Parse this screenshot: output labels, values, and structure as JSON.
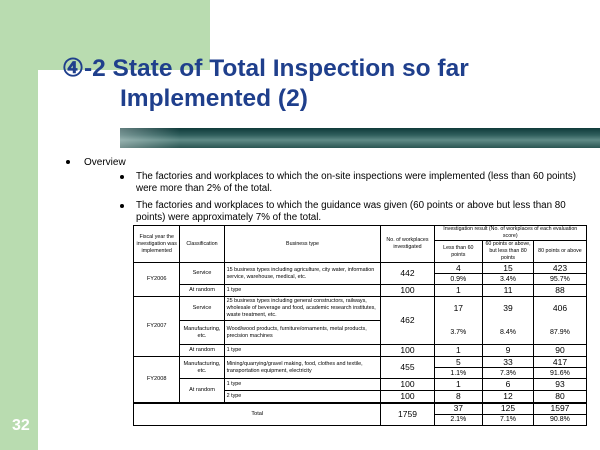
{
  "slide": {
    "title_line1": "④-2 State of Total Inspection so far",
    "title_line2": "Implemented (2)",
    "overview_label": "Overview",
    "bullets": [
      "The factories and workplaces to which the on-site inspections were implemented (less than 60 points) were more than 2% of the total.",
      "The factories and workplaces to which the guidance was given (60 points or above but less than 80 points) were approximately 7% of the total."
    ],
    "page_number": "32"
  },
  "table": {
    "headers": {
      "fiscal_year": "Fiscal year the investigation was implemented",
      "classification": "Classification",
      "business_type": "Business type",
      "no_investigated": "No. of workplaces investigated",
      "result_group": "Investigation result (No. of workplaces of each evaluation score)",
      "less60": "Less than 60 points",
      "60to80": "60 points or above, but less than 80 points",
      "80plus": "80 points or above"
    },
    "fy2006": {
      "year": "FY2006",
      "service": {
        "class": "Service",
        "type": "15 business types including agriculture, city water, information service, warehouse, medical, etc.",
        "investigated": "442",
        "less60": "4",
        "mid": "15",
        "high": "423",
        "less60_pct": "0.9%",
        "mid_pct": "3.4%",
        "high_pct": "95.7%"
      },
      "random": {
        "class": "At random",
        "type": "1 type",
        "investigated": "100",
        "less60": "1",
        "mid": "11",
        "high": "88"
      }
    },
    "fy2007": {
      "year": "FY2007",
      "service": {
        "class": "Service",
        "type": "25 business types including general constructors, railways, wholesale of beverage and food, academic research institutes, waste treatment, etc.",
        "investigated": "462",
        "less60": "17",
        "mid": "39",
        "high": "406",
        "less60_pct": "3.7%",
        "mid_pct": "8.4%",
        "high_pct": "87.9%"
      },
      "manufacturing": {
        "class": "Manufacturing, etc.",
        "type": "Wood/wood products, furniture/ornaments, metal products, precision machines"
      },
      "random": {
        "class": "At random",
        "type": "1 type",
        "investigated": "100",
        "less60": "1",
        "mid": "9",
        "high": "90"
      }
    },
    "fy2008": {
      "year": "FY2008",
      "manufacturing": {
        "class": "Manufacturing, etc.",
        "type": "Mining/quarrying/gravel making, food, clothes and textile, transportation equipment, electricity",
        "investigated": "455",
        "less60": "5",
        "mid": "33",
        "high": "417",
        "less60_pct": "1.1%",
        "mid_pct": "7.3%",
        "high_pct": "91.6%"
      },
      "random_class": "At random",
      "random1": {
        "type": "1 type",
        "investigated": "100",
        "less60": "1",
        "mid": "6",
        "high": "93"
      },
      "random2": {
        "type": "2 type",
        "investigated": "100",
        "less60": "8",
        "mid": "12",
        "high": "80"
      }
    },
    "total": {
      "label": "Total",
      "investigated": "1759",
      "less60": "37",
      "mid": "125",
      "high": "1597",
      "less60_pct": "2.1%",
      "mid_pct": "7.1%",
      "high_pct": "90.8%"
    }
  },
  "colors": {
    "accent_green": "#b9dcb0",
    "title_blue": "#1f3f8c",
    "bar_teal": "#1f4a48"
  }
}
